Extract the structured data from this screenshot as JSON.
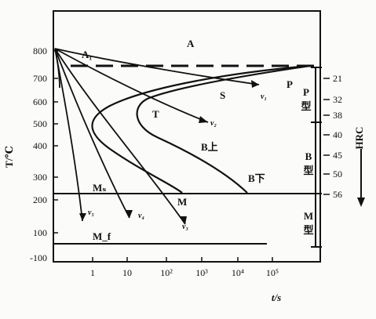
{
  "diagram": {
    "y_axis_label": "T/℃",
    "x_axis_label": "t/s",
    "y_ticks": [
      "800",
      "700",
      "600",
      "500",
      "400",
      "300",
      "200",
      "100",
      "-100"
    ],
    "x_ticks": [
      "1",
      "10",
      "10²",
      "10³",
      "10⁴",
      "10⁵"
    ],
    "region_labels": {
      "austenite": "A",
      "a1": "A₁",
      "pearlite": "P",
      "sorbite": "S",
      "troostite": "T",
      "upper_bainite": "B上",
      "lower_bainite": "B下",
      "ms": "Mₛ",
      "mf": "M_f",
      "martensite": "M"
    },
    "cooling_rates": [
      "v₁",
      "v₂",
      "v₃",
      "v₄",
      "v₅"
    ],
    "zones": [
      {
        "label": "P",
        "sub": "型"
      },
      {
        "label": "B",
        "sub": "型"
      },
      {
        "label": "M",
        "sub": "型"
      }
    ],
    "hrc_values": [
      "21",
      "32",
      "38",
      "40",
      "45",
      "50",
      "56"
    ],
    "hrc_label": "HRC"
  }
}
